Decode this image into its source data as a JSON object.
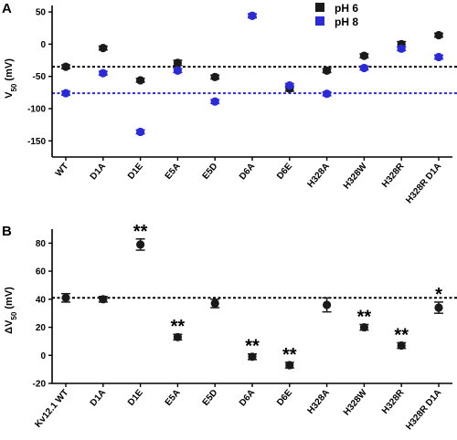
{
  "colors": {
    "ph6": "#1a1a1a",
    "ph8": "#2a2ad8"
  },
  "chart_data": [
    {
      "panel": "A",
      "type": "scatter",
      "categories": [
        "WT",
        "D1A",
        "D1E",
        "E5A",
        "E5D",
        "D6A",
        "D6E",
        "H328A",
        "H328W",
        "H328R",
        "H328R D1A"
      ],
      "ylabel": "V50 (mV)",
      "ylabel_main": "V",
      "ylabel_sub": "50",
      "ylabel_unit": " (mV)",
      "ylim": [
        -175,
        60
      ],
      "yticks": [
        50,
        0,
        -50,
        -100,
        -150
      ],
      "legend_position": "top-right",
      "series": [
        {
          "name": "pH 6",
          "color": "#1a1a1a",
          "values": [
            -35,
            -6,
            -56,
            -29,
            -51,
            44,
            -69,
            -41,
            -18,
            0,
            14
          ],
          "errors": [
            3,
            3,
            3,
            4,
            3,
            3,
            4,
            3,
            3,
            4,
            3
          ]
        },
        {
          "name": "pH 8",
          "color": "#2a2ad8",
          "values": [
            -76,
            -45,
            -136,
            -41,
            -89,
            44,
            -64,
            -77,
            -37,
            -7,
            -20
          ],
          "errors": [
            3,
            3,
            3,
            3,
            3,
            3,
            3,
            3,
            3,
            3,
            3
          ]
        }
      ],
      "reference_lines": [
        {
          "y": -35,
          "color": "#000000"
        },
        {
          "y": -76,
          "color": "#2a2ad8"
        }
      ]
    },
    {
      "panel": "B",
      "type": "scatter",
      "categories": [
        "Kv12.1 WT",
        "D1A",
        "D1E",
        "E5A",
        "E5D",
        "D6A",
        "D6E",
        "H328A",
        "H328W",
        "H328R",
        "H328R D1A"
      ],
      "ylabel": "ΔV50 (mV)",
      "ylabel_main": "ΔV",
      "ylabel_sub": "50",
      "ylabel_unit": " (mV)",
      "ylim": [
        -20,
        90
      ],
      "yticks": [
        80,
        60,
        40,
        20,
        0,
        -20
      ],
      "series": [
        {
          "name": "",
          "color": "#1a1a1a",
          "values": [
            41,
            40,
            79,
            13,
            37,
            -1,
            -7,
            36,
            20,
            7,
            34
          ],
          "errors": [
            3,
            2,
            4,
            2,
            3,
            2,
            2,
            5,
            2,
            2,
            4
          ]
        }
      ],
      "reference_lines": [
        {
          "y": 41,
          "color": "#000000"
        }
      ],
      "annotations": [
        "",
        "",
        "**",
        "**",
        "",
        "**",
        "**",
        "",
        "**",
        "**",
        "*"
      ]
    }
  ]
}
